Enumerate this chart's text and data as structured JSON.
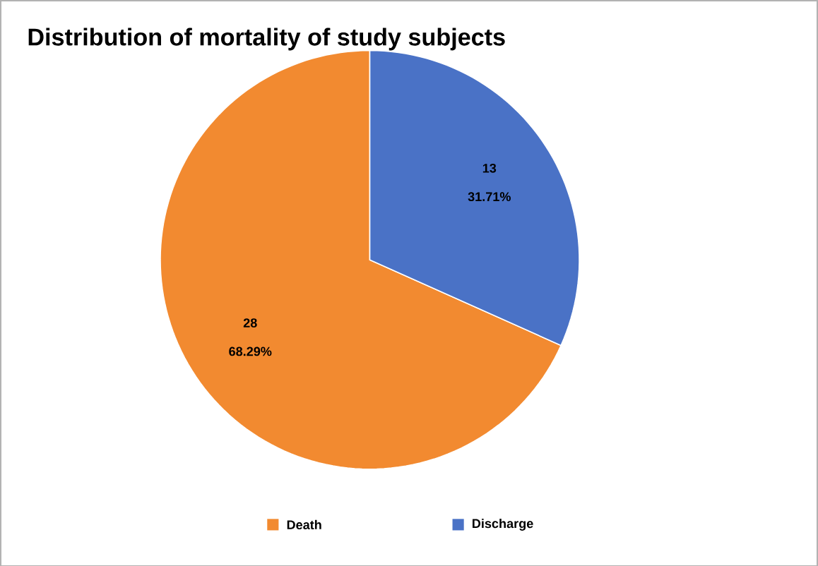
{
  "chart_data": {
    "type": "pie",
    "title": "Distribution of mortality of study subjects",
    "categories": [
      "Death",
      "Discharge"
    ],
    "values": [
      28,
      13
    ],
    "colors": [
      "#f28a30",
      "#4a72c6"
    ],
    "value_labels": [
      "28",
      "13"
    ],
    "annotations": [
      "68.29%",
      "31.71%"
    ],
    "legend": "bottom"
  }
}
